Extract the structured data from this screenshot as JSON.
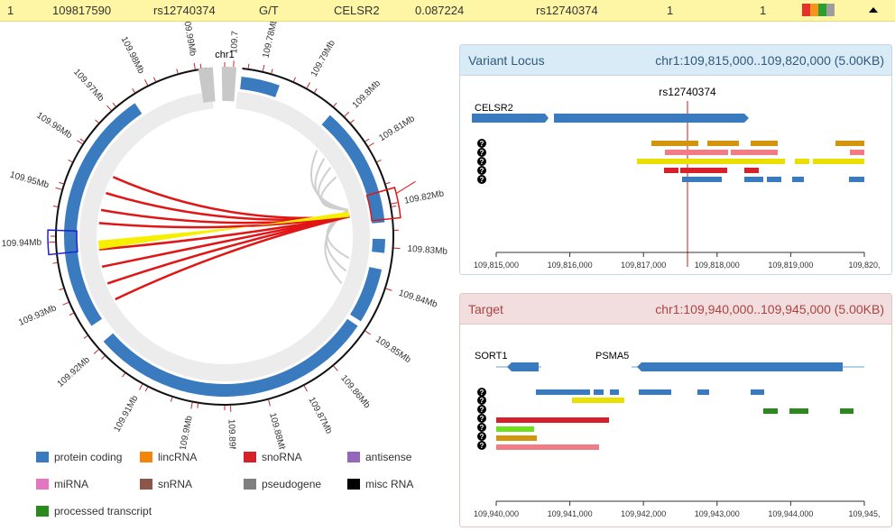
{
  "top_row": {
    "cells": [
      "1",
      "109817590",
      "rs12740374",
      "G/T",
      "CELSR2",
      "0.087224",
      "rs12740374",
      "1",
      "1"
    ],
    "swatch_colors": [
      "#e6322d",
      "#f7941d",
      "#2e9e2e",
      "#9e9e9e"
    ],
    "collapse_icon": "caret-up-icon"
  },
  "circos": {
    "chromosome": "chr1",
    "ticks": [
      {
        "label": "109.94Mb",
        "angle": 268
      },
      {
        "label": "109.93Mb",
        "angle": 247
      },
      {
        "label": "109.92Mb",
        "angle": 228
      },
      {
        "label": "109.91Mb",
        "angle": 209
      },
      {
        "label": "109.9Mb",
        "angle": 191
      },
      {
        "label": "109.89Mb",
        "angle": 178
      },
      {
        "label": "109.88Mb",
        "angle": 165
      },
      {
        "label": "109.87Mb",
        "angle": 152
      },
      {
        "label": "109.86Mb",
        "angle": 140
      },
      {
        "label": "109.85Mb",
        "angle": 124
      },
      {
        "label": "109.84Mb",
        "angle": 108
      },
      {
        "label": "109.83Mb",
        "angle": 94
      },
      {
        "label": "109.82Mb",
        "angle": 79
      },
      {
        "label": "109.81Mb",
        "angle": 58
      },
      {
        "label": "109.8Mb",
        "angle": 45
      },
      {
        "label": "109.79Mb",
        "angle": 29
      },
      {
        "label": "109.78Mb",
        "angle": 13
      },
      {
        "label": "109.7",
        "angle": 3
      },
      {
        "label": "109.99Mb",
        "angle": -10
      },
      {
        "label": "109.98Mb",
        "angle": -27
      },
      {
        "label": "109.97Mb",
        "angle": -42
      },
      {
        "label": "109.96Mb",
        "angle": -57
      },
      {
        "label": "109.95Mb",
        "angle": -74
      }
    ]
  },
  "variant_locus": {
    "title": "Variant Locus",
    "region": "chr1:109,815,000..109,820,000 (5.00KB)",
    "snp_label": "rs12740374",
    "gene_label": "CELSR2",
    "axis_ticks": [
      "109,815,000",
      "109,816,000",
      "109,817,000",
      "109,818,000",
      "109,819,000",
      "109,820,"
    ]
  },
  "target": {
    "title": "Target",
    "region": "chr1:109,940,000..109,945,000 (5.00KB)",
    "gene_labels": [
      "SORT1",
      "PSMA5"
    ],
    "axis_ticks": [
      "109,940,000",
      "109,941,000",
      "109,942,000",
      "109,943,000",
      "109,944,000",
      "109,945,"
    ]
  },
  "legend": {
    "items": [
      {
        "label": "protein coding",
        "color": "#3a7bbf"
      },
      {
        "label": "lincRNA",
        "color": "#f5840c"
      },
      {
        "label": "snoRNA",
        "color": "#d6202a"
      },
      {
        "label": "antisense",
        "color": "#9467bd"
      },
      {
        "label": "miRNA",
        "color": "#e377c2"
      },
      {
        "label": "snRNA",
        "color": "#8c564b"
      },
      {
        "label": "pseudogene",
        "color": "#7f7f7f"
      },
      {
        "label": "misc RNA",
        "color": "#000000"
      },
      {
        "label": "processed transcript",
        "color": "#2b8a1e"
      }
    ]
  }
}
